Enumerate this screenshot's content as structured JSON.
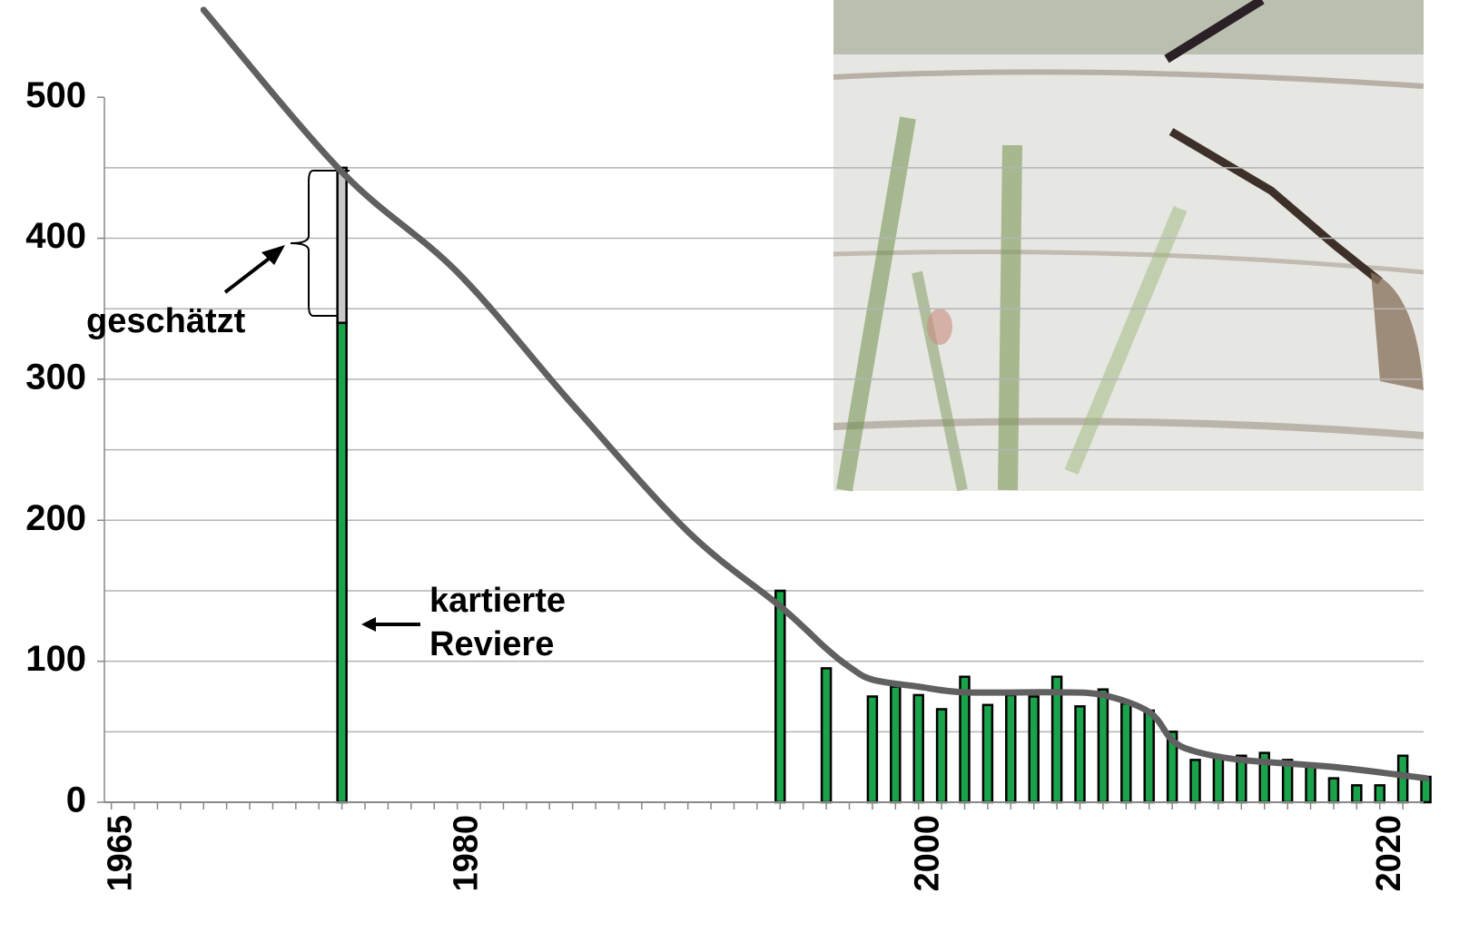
{
  "chart_data": {
    "type": "bar",
    "x": [
      1975,
      1994,
      1996,
      1998,
      1999,
      2000,
      2001,
      2002,
      2003,
      2004,
      2005,
      2006,
      2007,
      2008,
      2009,
      2010,
      2011,
      2012,
      2013,
      2014,
      2015,
      2016,
      2017,
      2018,
      2019,
      2020,
      2021,
      2022
    ],
    "series": [
      {
        "name": "kartierte Reviere",
        "color": "#1aa34a",
        "values": [
          340,
          150,
          95,
          75,
          82,
          76,
          66,
          89,
          69,
          76,
          75,
          89,
          68,
          80,
          70,
          65,
          50,
          30,
          33,
          33,
          35,
          30,
          25,
          17,
          12,
          12,
          33,
          18
        ]
      },
      {
        "name": "geschätzt",
        "color": "#c8c8c8",
        "values": [
          110,
          null,
          null,
          null,
          null,
          null,
          null,
          null,
          null,
          null,
          null,
          null,
          null,
          null,
          null,
          null,
          null,
          null,
          null,
          null,
          null,
          null,
          null,
          null,
          null,
          null,
          null,
          null
        ]
      }
    ],
    "trend": {
      "color": "#606060",
      "x": [
        1969,
        1975,
        1980,
        1985,
        1990,
        1994,
        1996,
        1997,
        1998,
        2000,
        2002,
        2006,
        2008,
        2010,
        2011,
        2012,
        2014,
        2018,
        2022
      ],
      "values": [
        562,
        447,
        376,
        282,
        192,
        139,
        109,
        96,
        87,
        82,
        78,
        78,
        76,
        64,
        44,
        36,
        30,
        25,
        17
      ]
    },
    "xlim": [
      1964.7,
      2021.9
    ],
    "xticks": [
      1965,
      1980,
      2000,
      2020
    ],
    "x_minor_ticks": [
      1965,
      1966,
      1967,
      1968,
      1969,
      1970,
      1971,
      1972,
      1973,
      1974,
      1975,
      1976,
      1977,
      1978,
      1979,
      1980,
      1981,
      1982,
      1983,
      1984,
      1985,
      1986,
      1987,
      1988,
      1989,
      1990,
      1991,
      1992,
      1993,
      1994,
      1995,
      1996,
      1997,
      1998,
      1999,
      2000,
      2001,
      2002,
      2003,
      2004,
      2005,
      2006,
      2007,
      2008,
      2009,
      2010,
      2011,
      2012,
      2013,
      2014,
      2015,
      2016,
      2017,
      2018,
      2019,
      2020,
      2021
    ],
    "ylim": [
      0,
      569
    ],
    "yticks": [
      0,
      100,
      200,
      300,
      400,
      500
    ],
    "y_grid": [
      50,
      100,
      150,
      200,
      250,
      300,
      350,
      400,
      450
    ],
    "grid": true
  }
}
